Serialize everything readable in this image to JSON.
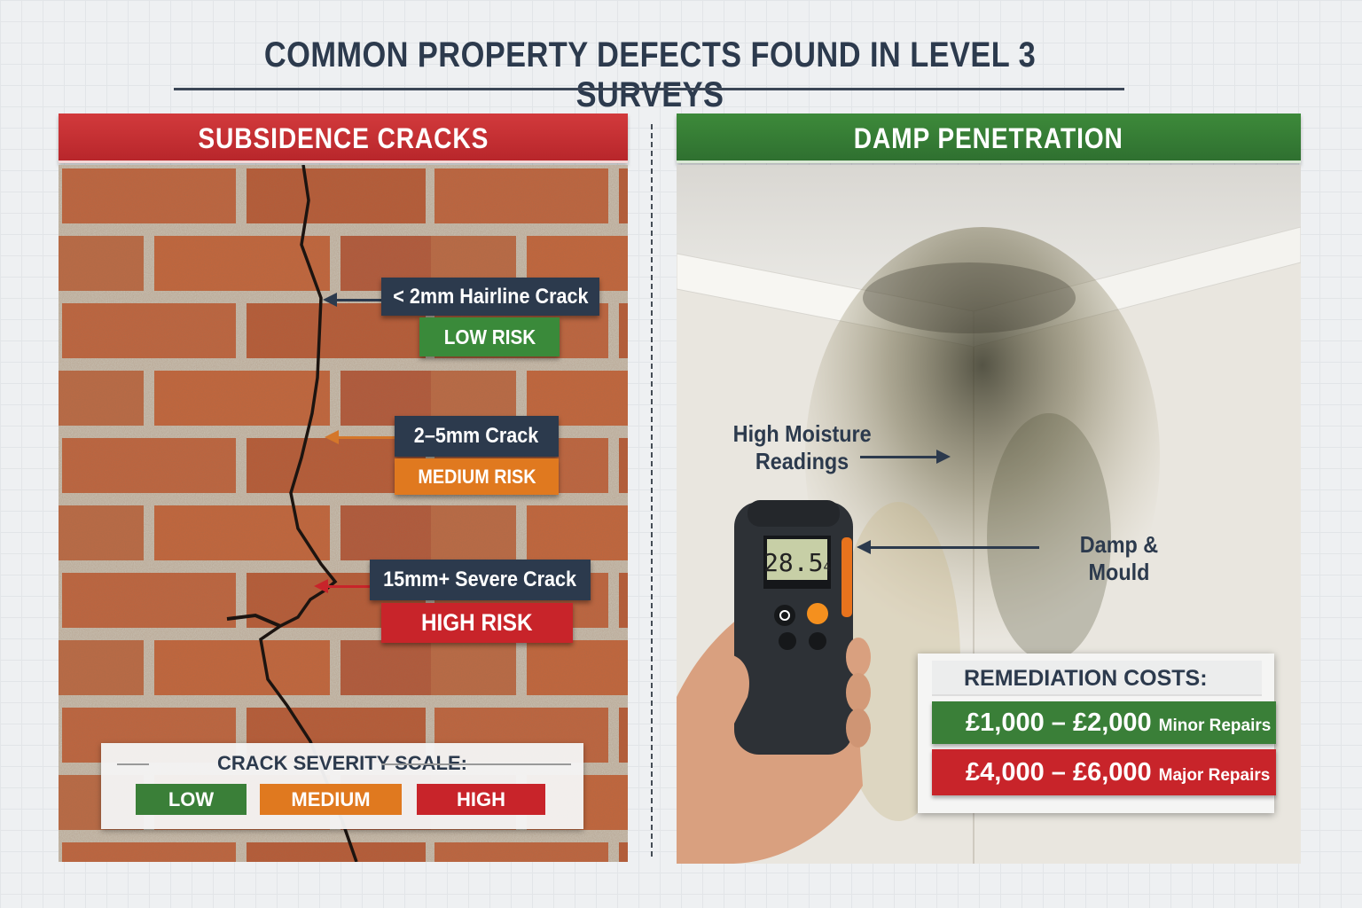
{
  "title": "COMMON PROPERTY DEFECTS FOUND IN LEVEL 3 SURVEYS",
  "left_panel": {
    "heading": "SUBSIDENCE CRACKS",
    "labels": [
      {
        "size": "< 2mm Hairline Crack",
        "risk": "LOW RISK",
        "color": "#3a8a3a"
      },
      {
        "size": "2–5mm Crack",
        "risk": "MEDIUM RISK",
        "color": "#e0791f"
      },
      {
        "size": "15mm+ Severe Crack",
        "risk": "HIGH RISK",
        "color": "#c8242a"
      }
    ],
    "scale": {
      "title": "CRACK SEVERITY SCALE:",
      "levels": [
        "LOW",
        "MEDIUM",
        "HIGH"
      ]
    }
  },
  "right_panel": {
    "heading": "DAMP PENETRATION",
    "moisture_label_line1": "High Moisture",
    "moisture_label_line2": "Readings",
    "damp_label": "Damp & Mould",
    "meter_reading": "28.5",
    "meter_unit": "4",
    "costs": {
      "title": "REMEDIATION COSTS:",
      "rows": [
        {
          "amount": "£1,000 – £2,000",
          "desc": "Minor Repairs",
          "color": "#3a7f38"
        },
        {
          "amount": "£4,000 – £6,000",
          "desc": "Major Repairs",
          "color": "#c8242a"
        }
      ]
    }
  },
  "colors": {
    "navy": "#2c3a4d",
    "green": "#3a8a3a",
    "orange": "#e0791f",
    "red": "#c8242a"
  }
}
